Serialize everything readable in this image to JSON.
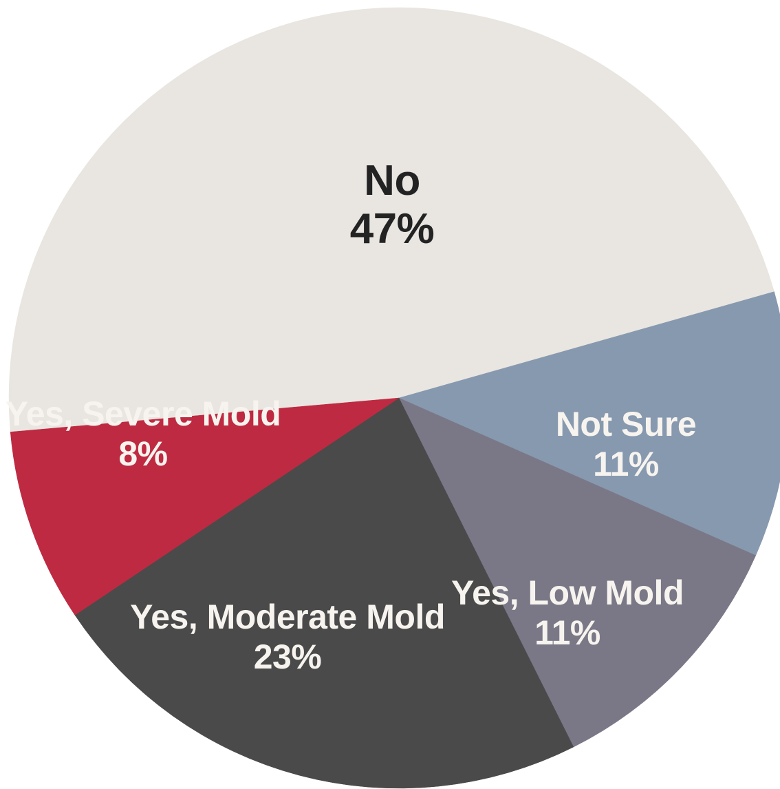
{
  "chart_data": {
    "type": "pie",
    "title": "",
    "slices": [
      {
        "label": "No",
        "value": 47,
        "display": "47%",
        "color": "#E9E6E1",
        "text_color": "#232323"
      },
      {
        "label": "Not Sure",
        "value": 11,
        "display": "11%",
        "color": "#8799AF",
        "text_color": "#F7F4EF"
      },
      {
        "label": "Yes, Low Mold",
        "value": 11,
        "display": "11%",
        "color": "#7A7887",
        "text_color": "#F7F4EF"
      },
      {
        "label": "Yes, Moderate Mold",
        "value": 23,
        "display": "23%",
        "color": "#4A4A4A",
        "text_color": "#F7F4EF"
      },
      {
        "label": "Yes, Severe Mold",
        "value": 8,
        "display": "8%",
        "color": "#BE2A41",
        "text_color": "#F7F4EF"
      }
    ]
  }
}
